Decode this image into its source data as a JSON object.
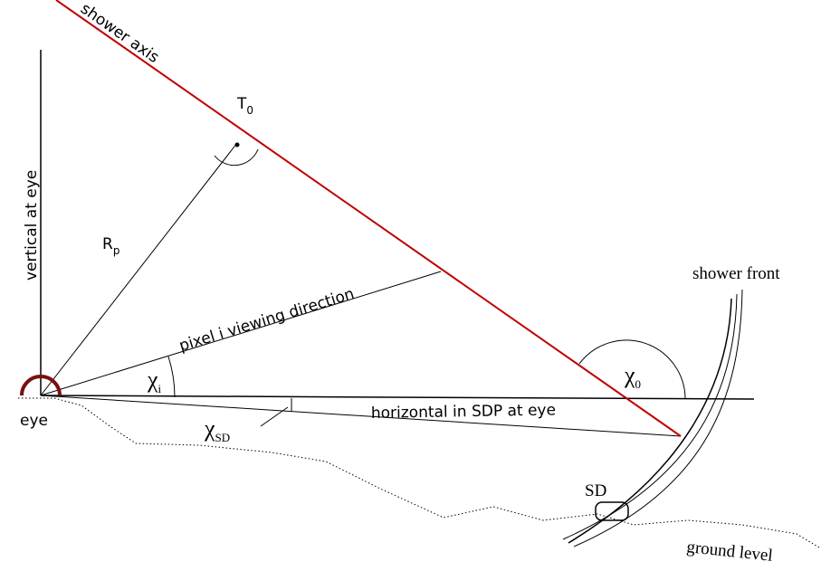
{
  "labels": {
    "shower_axis": "shower axis",
    "t0": {
      "text": "T",
      "sub": "0"
    },
    "vertical": "vertical at eye",
    "rp": {
      "text": "R",
      "sub": "p"
    },
    "pixel": "pixel i viewing direction",
    "chi_i": {
      "text": "χ",
      "sub": "i"
    },
    "shower_front": "shower front",
    "chi_0": {
      "text": "χ",
      "sub": "0"
    },
    "eye": "eye",
    "horizontal": "horizontal in SDP at eye",
    "chi_sd": {
      "text": "χ",
      "sub": "SD"
    },
    "sd": "SD",
    "ground": "ground level"
  }
}
